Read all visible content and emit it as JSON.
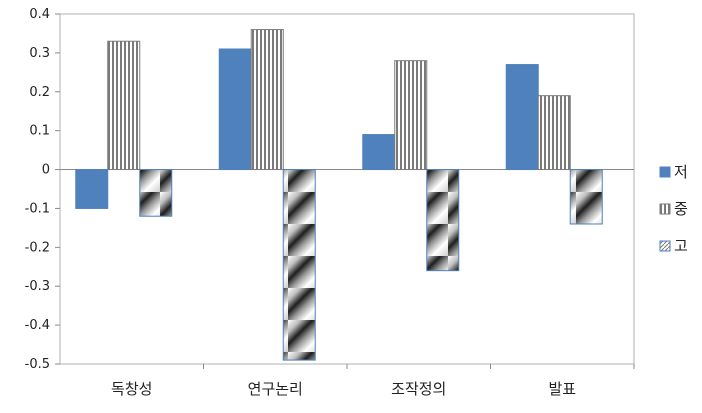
{
  "chart_data": {
    "type": "bar",
    "categories": [
      "독창성",
      "연구논리",
      "조작정의",
      "발표"
    ],
    "series": [
      {
        "name": "저",
        "values": [
          -0.1,
          0.31,
          0.09,
          0.27
        ],
        "color": "#4f81bd",
        "pattern": "solid"
      },
      {
        "name": "중",
        "values": [
          0.33,
          0.36,
          0.28,
          0.19
        ],
        "color": "#7f7f7f",
        "pattern": "vertical-stripes"
      },
      {
        "name": "고",
        "values": [
          -0.12,
          -0.49,
          -0.26,
          -0.14
        ],
        "color": "#4f81bd",
        "pattern": "diagonal-gradient"
      }
    ],
    "ylim": [
      -0.5,
      0.4
    ],
    "yticks": [
      "0.4",
      "0.3",
      "0.2",
      "0.1",
      "0",
      "-0.1",
      "-0.2",
      "-0.3",
      "-0.4",
      "-0.5"
    ],
    "ytick_values": [
      0.4,
      0.3,
      0.2,
      0.1,
      0,
      -0.1,
      -0.2,
      -0.3,
      -0.4,
      -0.5
    ],
    "grid": false,
    "legend_position": "right",
    "title": "",
    "xlabel": "",
    "ylabel": ""
  }
}
